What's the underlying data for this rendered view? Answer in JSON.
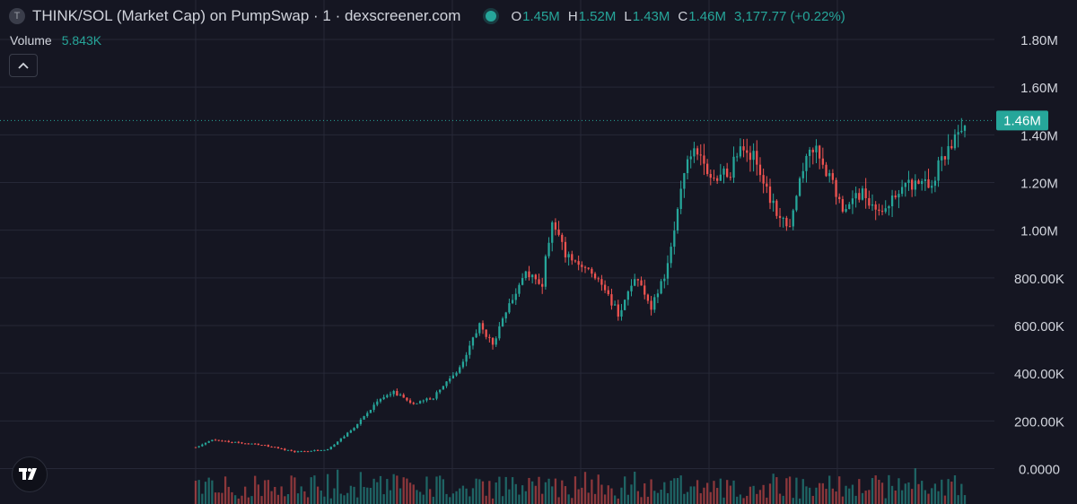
{
  "header": {
    "symbol_icon": "T",
    "title": "THINK/SOL (Market Cap) on PumpSwap · 1 · dexscreener.com",
    "ohlc": [
      {
        "key": "O",
        "value": "1.45M"
      },
      {
        "key": "H",
        "value": "1.52M"
      },
      {
        "key": "L",
        "value": "1.43M"
      },
      {
        "key": "C",
        "value": "1.46M"
      }
    ],
    "change": "3,177.77 (+0.22%)"
  },
  "volume": {
    "label": "Volume",
    "value": "5.843K"
  },
  "colors": {
    "background": "#151622",
    "grid": "#262837",
    "up": "#26a69a",
    "down": "#ef5350",
    "axis_text": "#d1d4dc"
  },
  "icons": {
    "collapse": "chevron-up-icon",
    "logo": "tradingview-logo-icon",
    "status": "live-status-dot-icon"
  },
  "chart_data": {
    "type": "candlestick",
    "ylabel": "",
    "xlabel": "",
    "ylim": [
      -100000,
      1860000
    ],
    "y_ticks": [
      {
        "value": 0,
        "label": "0.0000"
      },
      {
        "value": 200000,
        "label": "200.00K"
      },
      {
        "value": 400000,
        "label": "400.00K"
      },
      {
        "value": 600000,
        "label": "600.00K"
      },
      {
        "value": 800000,
        "label": "800.00K"
      },
      {
        "value": 1000000,
        "label": "1.00M"
      },
      {
        "value": 1200000,
        "label": "1.20M"
      },
      {
        "value": 1400000,
        "label": "1.40M"
      },
      {
        "value": 1600000,
        "label": "1.60M"
      },
      {
        "value": 1800000,
        "label": "1.80M"
      }
    ],
    "last_price": {
      "value": 1460000,
      "label": "1.46M"
    },
    "grid": true,
    "keypoints": [
      [
        0,
        90000
      ],
      [
        5,
        120000
      ],
      [
        20,
        100000
      ],
      [
        30,
        70000
      ],
      [
        40,
        80000
      ],
      [
        48,
        170000
      ],
      [
        55,
        280000
      ],
      [
        60,
        320000
      ],
      [
        66,
        270000
      ],
      [
        72,
        300000
      ],
      [
        80,
        420000
      ],
      [
        86,
        600000
      ],
      [
        90,
        520000
      ],
      [
        95,
        700000
      ],
      [
        100,
        810000
      ],
      [
        105,
        780000
      ],
      [
        108,
        1050000
      ],
      [
        112,
        900000
      ],
      [
        118,
        860000
      ],
      [
        122,
        800000
      ],
      [
        128,
        650000
      ],
      [
        133,
        800000
      ],
      [
        138,
        680000
      ],
      [
        143,
        850000
      ],
      [
        148,
        1250000
      ],
      [
        152,
        1350000
      ],
      [
        156,
        1200000
      ],
      [
        162,
        1250000
      ],
      [
        165,
        1350000
      ],
      [
        170,
        1300000
      ],
      [
        175,
        1100000
      ],
      [
        180,
        1020000
      ],
      [
        186,
        1370000
      ],
      [
        191,
        1250000
      ],
      [
        196,
        1100000
      ],
      [
        202,
        1150000
      ],
      [
        208,
        1080000
      ],
      [
        212,
        1150000
      ],
      [
        218,
        1200000
      ],
      [
        222,
        1180000
      ],
      [
        228,
        1350000
      ],
      [
        233,
        1460000
      ]
    ],
    "candle_count": 234,
    "volume_range": [
      0,
      5843
    ]
  }
}
